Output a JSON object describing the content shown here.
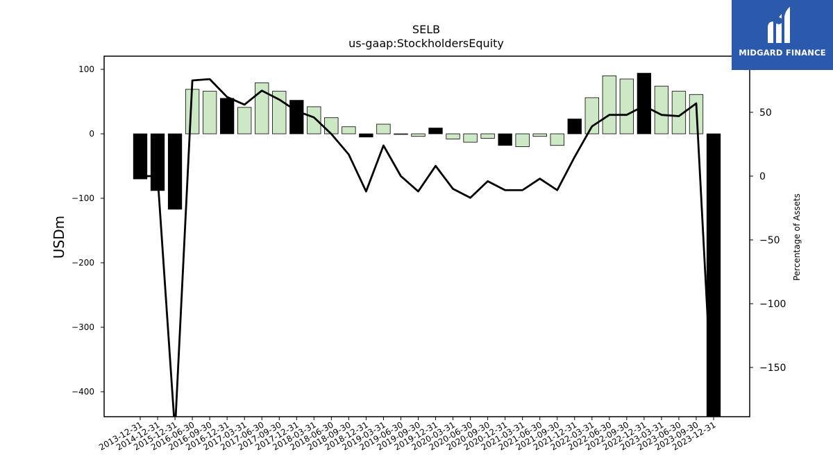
{
  "logo": {
    "text": "MIDGARD FINANCE",
    "background": "#2b59ac"
  },
  "chart_data": {
    "type": "bar",
    "title": "SELB",
    "subtitle": "us-gaap:StockholdersEquity",
    "ylabel": "USDm",
    "y2label": "Percentage of Assets",
    "ylim": [
      -440,
      120
    ],
    "y2lim": [
      -188,
      88
    ],
    "yticks": [
      100,
      0,
      -100,
      -200,
      -300,
      -400
    ],
    "y2ticks": [
      50,
      0,
      -50,
      -100,
      -150
    ],
    "grid": false,
    "colors": {
      "increase": "#cde8c5",
      "decrease": "#000000",
      "line": "#000000"
    },
    "categories": [
      "2013-12-31",
      "2014-12-31",
      "2015-12-31",
      "2016-06-30",
      "2016-09-30",
      "2016-12-31",
      "2017-03-31",
      "2017-06-30",
      "2017-09-30",
      "2017-12-31",
      "2018-03-31",
      "2018-06-30",
      "2018-09-30",
      "2018-12-31",
      "2019-03-31",
      "2019-06-30",
      "2019-09-30",
      "2019-12-31",
      "2020-03-31",
      "2020-06-30",
      "2020-09-30",
      "2020-12-31",
      "2021-03-31",
      "2021-06-30",
      "2021-09-30",
      "2021-12-31",
      "2022-03-31",
      "2022-06-30",
      "2022-09-30",
      "2022-12-31",
      "2023-03-31",
      "2023-06-30",
      "2023-09-30",
      "2023-12-31"
    ],
    "series": [
      {
        "type": "bar",
        "values": [
          -70,
          -88,
          -117,
          69,
          66,
          55,
          41,
          79,
          66,
          52,
          42,
          25,
          11,
          -5,
          15,
          -1,
          -4,
          9,
          -8,
          -13,
          -7,
          -18,
          -20,
          -4,
          -18,
          23,
          56,
          90,
          85,
          94,
          74,
          66,
          61,
          -440
        ],
        "bar_colors": [
          "decrease",
          "decrease",
          "decrease",
          "increase",
          "increase",
          "decrease",
          "increase",
          "increase",
          "increase",
          "decrease",
          "increase",
          "increase",
          "increase",
          "decrease",
          "increase",
          "increase",
          "increase",
          "decrease",
          "increase",
          "increase",
          "increase",
          "decrease",
          "increase",
          "increase",
          "increase",
          "decrease",
          "increase",
          "increase",
          "increase",
          "decrease",
          "increase",
          "increase",
          "increase",
          "decrease"
        ]
      },
      {
        "type": "line",
        "axis": "right",
        "values": [
          0,
          0,
          -200,
          75,
          76,
          62,
          56,
          67,
          60,
          51,
          46,
          33,
          17,
          -12,
          24,
          0,
          -12,
          8,
          -10,
          -17,
          -4,
          -11,
          -11,
          -2,
          -11,
          15,
          39,
          48,
          48,
          55,
          48,
          47,
          57,
          -200
        ]
      }
    ]
  }
}
